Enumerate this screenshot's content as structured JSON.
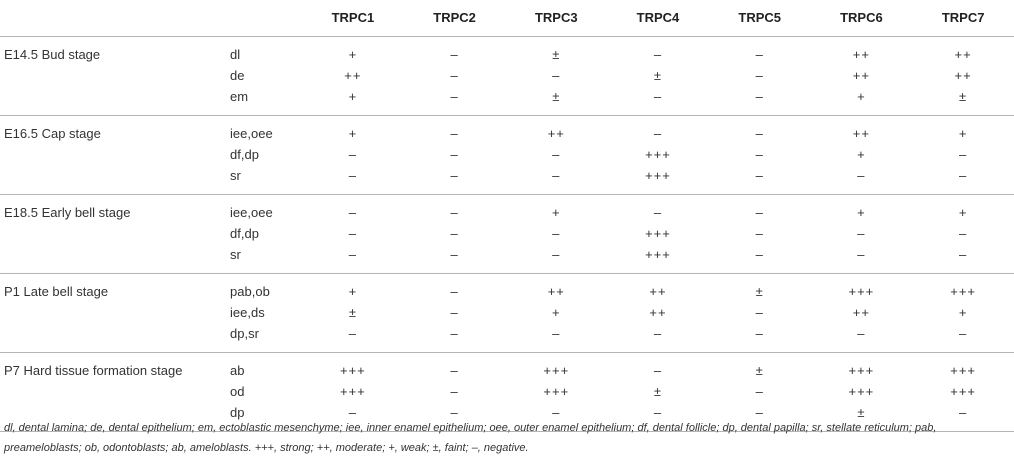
{
  "table": {
    "headers": [
      "",
      "",
      "TRPC1",
      "TRPC2",
      "TRPC3",
      "TRPC4",
      "TRPC5",
      "TRPC6",
      "TRPC7"
    ],
    "groups": [
      {
        "stage": "E14.5 Bud stage",
        "rows": [
          {
            "tissue": "dl",
            "values": [
              "+",
              "–",
              "±",
              "–",
              "–",
              "++",
              "++"
            ]
          },
          {
            "tissue": "de",
            "values": [
              "++",
              "–",
              "–",
              "±",
              "–",
              "++",
              "++"
            ]
          },
          {
            "tissue": "em",
            "values": [
              "+",
              "–",
              "±",
              "–",
              "–",
              "+",
              "±"
            ]
          }
        ]
      },
      {
        "stage": "E16.5 Cap stage",
        "rows": [
          {
            "tissue": "iee,oee",
            "values": [
              "+",
              "–",
              "++",
              "–",
              "–",
              "++",
              "+"
            ]
          },
          {
            "tissue": "df,dp",
            "values": [
              "–",
              "–",
              "–",
              "+++",
              "–",
              "+",
              "–"
            ]
          },
          {
            "tissue": "sr",
            "values": [
              "–",
              "–",
              "–",
              "+++",
              "–",
              "–",
              "–"
            ]
          }
        ]
      },
      {
        "stage": "E18.5 Early bell stage",
        "rows": [
          {
            "tissue": "iee,oee",
            "values": [
              "–",
              "–",
              "+",
              "–",
              "–",
              "+",
              "+"
            ]
          },
          {
            "tissue": "df,dp",
            "values": [
              "–",
              "–",
              "–",
              "+++",
              "–",
              "–",
              "–"
            ]
          },
          {
            "tissue": "sr",
            "values": [
              "–",
              "–",
              "–",
              "+++",
              "–",
              "–",
              "–"
            ]
          }
        ]
      },
      {
        "stage": "P1 Late bell stage",
        "rows": [
          {
            "tissue": "pab,ob",
            "values": [
              "+",
              "–",
              "++",
              "++",
              "±",
              "+++",
              "+++"
            ]
          },
          {
            "tissue": "iee,ds",
            "values": [
              "±",
              "–",
              "+",
              "++",
              "–",
              "++",
              "+"
            ]
          },
          {
            "tissue": "dp,sr",
            "values": [
              "–",
              "–",
              "–",
              "–",
              "–",
              "–",
              "–"
            ]
          }
        ]
      },
      {
        "stage": "P7 Hard tissue formation stage",
        "rows": [
          {
            "tissue": "ab",
            "values": [
              "+++",
              "–",
              "+++",
              "–",
              "±",
              "+++",
              "+++"
            ]
          },
          {
            "tissue": "od",
            "values": [
              "+++",
              "–",
              "+++",
              "±",
              "–",
              "+++",
              "+++"
            ]
          },
          {
            "tissue": "dp",
            "values": [
              "–",
              "–",
              "–",
              "–",
              "–",
              "±",
              "–"
            ]
          }
        ]
      }
    ]
  },
  "footnote": "dl, dental lamina; de, dental epithelium; em, ectoblastic mesenchyme; iee, inner enamel epithelium; oee, outer enamel epithelium; df, dental follicle; dp, dental papilla; sr, stellate reticulum; pab, preameloblasts; ob, odontoblasts; ab, ameloblasts. +++, strong; ++, moderate; +, weak; ±, faint; –, negative."
}
